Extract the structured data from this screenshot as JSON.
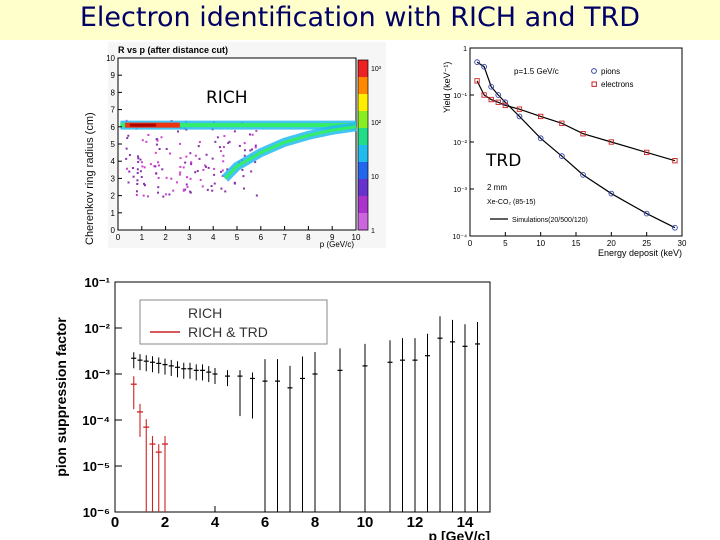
{
  "slide": {
    "title": "Electron identification with RICH and TRD"
  },
  "labels": {
    "rich": "RICH",
    "trd": "TRD"
  },
  "colors": {
    "title_bg": "#ffffcc",
    "title_text": "#000066",
    "electron": "#cc2222",
    "pion": "#3344aa"
  },
  "chart_data": [
    {
      "type": "heatmap",
      "title": "R vs p (after distance cut)",
      "xlabel": "p (GeV/c)",
      "ylabel": "Cherenkov ring radius (cm)",
      "xlim": [
        0,
        10
      ],
      "ylim": [
        0,
        10
      ],
      "xticks": [
        "0",
        "1",
        "2",
        "3",
        "4",
        "5",
        "6",
        "7",
        "8",
        "9",
        "10"
      ],
      "yticks": [
        "0",
        "1",
        "2",
        "3",
        "4",
        "5",
        "6",
        "7",
        "8",
        "9",
        "10"
      ],
      "colorscale": {
        "scale": "log",
        "ticks": [
          "1",
          "10",
          "10²",
          "10³"
        ]
      },
      "bands": [
        {
          "x": [
            0.1,
            10
          ],
          "y": [
            6.1,
            6.1
          ]
        },
        {
          "x": [
            4.5,
            5,
            6,
            7,
            8,
            9,
            10
          ],
          "y": [
            3.0,
            3.7,
            4.5,
            5.1,
            5.5,
            5.8,
            6.0
          ]
        }
      ]
    },
    {
      "type": "line",
      "xlabel": "Energy deposit (keV)",
      "ylabel": "Yield (keV⁻¹)",
      "xlim": [
        0,
        30
      ],
      "ylim": [
        0.0001,
        1
      ],
      "yscale": "log",
      "xticks": [
        "0",
        "5",
        "10",
        "15",
        "20",
        "25",
        "30"
      ],
      "yticks": [
        "10⁻⁴",
        "10⁻³",
        "10⁻²",
        "10⁻¹",
        "1"
      ],
      "annotations": [
        "p=1.5 GeV/c",
        "2 mm",
        "Xe-CO₂ (85-15)"
      ],
      "legend": [
        "pions",
        "electrons",
        "Simulations(20/500/120)"
      ],
      "series": [
        {
          "name": "pions",
          "x": [
            1,
            2,
            3,
            4,
            5,
            7,
            10,
            13,
            16,
            20,
            25,
            29
          ],
          "y": [
            0.5,
            0.4,
            0.15,
            0.1,
            0.07,
            0.035,
            0.012,
            0.005,
            0.002,
            0.0008,
            0.0003,
            0.00015
          ]
        },
        {
          "name": "electrons",
          "x": [
            1,
            2,
            3,
            4,
            5,
            7,
            10,
            13,
            16,
            20,
            25,
            29
          ],
          "y": [
            0.2,
            0.1,
            0.08,
            0.07,
            0.06,
            0.05,
            0.035,
            0.025,
            0.015,
            0.01,
            0.006,
            0.004
          ]
        }
      ]
    },
    {
      "type": "scatter",
      "xlabel": "p [GeV/c]",
      "ylabel": "pion suppression factor",
      "xlim": [
        0,
        15
      ],
      "ylim": [
        1e-06,
        0.1
      ],
      "yscale": "log",
      "xticks": [
        "0",
        "2",
        "4",
        "6",
        "8",
        "10",
        "12",
        "14"
      ],
      "yticks": [
        "10⁻¹",
        "10⁻²",
        "10⁻³",
        "10⁻⁴",
        "10⁻⁵",
        "10⁻⁶"
      ],
      "legend": [
        "RICH",
        "RICH & TRD"
      ],
      "series": [
        {
          "name": "RICH",
          "x": [
            0.75,
            1.0,
            1.25,
            1.5,
            1.75,
            2.0,
            2.25,
            2.5,
            2.75,
            3.0,
            3.25,
            3.5,
            3.75,
            4.0,
            4.5,
            5.0,
            5.5,
            6.0,
            6.5,
            7.0,
            7.5,
            8.0,
            9.0,
            10.0,
            11.0,
            11.5,
            12.0,
            12.5,
            13.0,
            13.5,
            14.0,
            14.5
          ],
          "y": [
            0.0022,
            0.002,
            0.0019,
            0.0018,
            0.0017,
            0.0016,
            0.0015,
            0.0014,
            0.0013,
            0.0013,
            0.0012,
            0.0012,
            0.0011,
            0.001,
            0.0009,
            0.0009,
            0.0008,
            0.0007,
            0.0007,
            0.0005,
            0.0008,
            0.001,
            0.0012,
            0.0015,
            0.0018,
            0.002,
            0.002,
            0.0025,
            0.006,
            0.005,
            0.004,
            0.0045
          ]
        },
        {
          "name": "RICH & TRD",
          "x": [
            0.75,
            1.0,
            1.25,
            1.5,
            1.75,
            2.0
          ],
          "y": [
            0.0006,
            0.00015,
            7e-05,
            3e-05,
            2e-05,
            3e-05
          ]
        }
      ]
    }
  ]
}
